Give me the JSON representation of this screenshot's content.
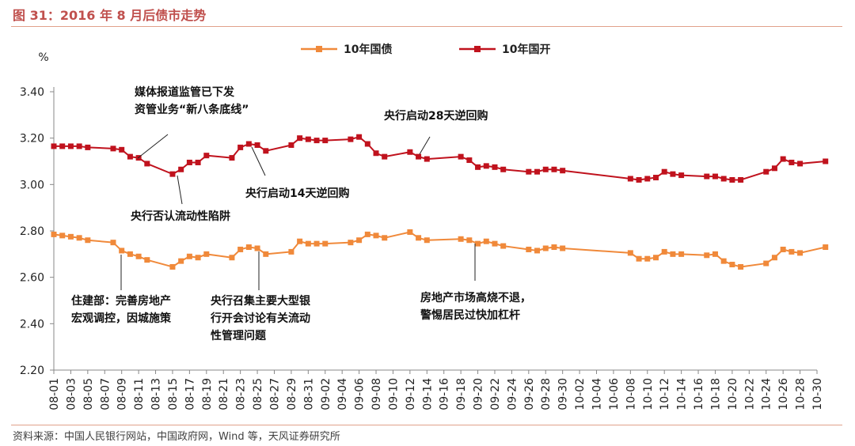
{
  "figure": {
    "title": "图 31：2016 年 8 月后债市走势",
    "source": "资料来源：中国人民银行网站，中国政府网，Wind 等，天风证券研究所"
  },
  "colors": {
    "title": "#c0504d",
    "series_orange": "#f0893a",
    "series_red": "#c0121d",
    "rule": "#e1a18a"
  },
  "chart_data": {
    "type": "line",
    "ylabel": "%",
    "ylim": [
      2.2,
      3.4
    ],
    "yticks": [
      "2.20",
      "2.40",
      "2.60",
      "2.80",
      "3.00",
      "3.20",
      "3.40"
    ],
    "date_range": [
      "08-01",
      "10-30"
    ],
    "xticks": [
      "08-01",
      "08-03",
      "08-05",
      "08-07",
      "08-09",
      "08-11",
      "08-13",
      "08-15",
      "08-17",
      "08-19",
      "08-21",
      "08-23",
      "08-25",
      "08-27",
      "08-29",
      "08-31",
      "09-02",
      "09-04",
      "09-06",
      "09-08",
      "09-10",
      "09-12",
      "09-14",
      "09-16",
      "09-18",
      "09-20",
      "09-22",
      "09-24",
      "09-26",
      "09-28",
      "09-30",
      "10-02",
      "10-04",
      "10-06",
      "10-08",
      "10-10",
      "10-12",
      "10-14",
      "10-16",
      "10-18",
      "10-20",
      "10-22",
      "10-24",
      "10-26",
      "10-28",
      "10-30"
    ],
    "grid": false,
    "legend_position": "top-center",
    "series": [
      {
        "name": "10年国债",
        "color": "#f0893a",
        "marker": "square",
        "x": [
          "08-01",
          "08-02",
          "08-03",
          "08-04",
          "08-05",
          "08-08",
          "08-09",
          "08-10",
          "08-11",
          "08-12",
          "08-15",
          "08-16",
          "08-17",
          "08-18",
          "08-19",
          "08-22",
          "08-23",
          "08-24",
          "08-25",
          "08-26",
          "08-29",
          "08-30",
          "08-31",
          "09-01",
          "09-02",
          "09-05",
          "09-06",
          "09-07",
          "09-08",
          "09-09",
          "09-12",
          "09-13",
          "09-14",
          "09-18",
          "09-19",
          "09-20",
          "09-21",
          "09-22",
          "09-23",
          "09-26",
          "09-27",
          "09-28",
          "09-29",
          "09-30",
          "10-08",
          "10-09",
          "10-10",
          "10-11",
          "10-12",
          "10-13",
          "10-14",
          "10-17",
          "10-18",
          "10-19",
          "10-20",
          "10-21",
          "10-24",
          "10-25",
          "10-26",
          "10-27",
          "10-28",
          "10-31"
        ],
        "values": [
          2.785,
          2.78,
          2.775,
          2.77,
          2.76,
          2.75,
          2.715,
          2.7,
          2.69,
          2.675,
          2.645,
          2.67,
          2.69,
          2.685,
          2.7,
          2.685,
          2.72,
          2.73,
          2.725,
          2.7,
          2.71,
          2.755,
          2.745,
          2.745,
          2.745,
          2.75,
          2.76,
          2.785,
          2.78,
          2.77,
          2.795,
          2.77,
          2.76,
          2.765,
          2.76,
          2.745,
          2.755,
          2.745,
          2.735,
          2.72,
          2.715,
          2.725,
          2.73,
          2.725,
          2.705,
          2.68,
          2.68,
          2.685,
          2.71,
          2.7,
          2.7,
          2.695,
          2.7,
          2.67,
          2.655,
          2.645,
          2.66,
          2.685,
          2.72,
          2.71,
          2.705,
          2.73
        ]
      },
      {
        "name": "10年国开",
        "color": "#c0121d",
        "marker": "square",
        "x": [
          "08-01",
          "08-02",
          "08-03",
          "08-04",
          "08-05",
          "08-08",
          "08-09",
          "08-10",
          "08-11",
          "08-12",
          "08-15",
          "08-16",
          "08-17",
          "08-18",
          "08-19",
          "08-22",
          "08-23",
          "08-24",
          "08-25",
          "08-26",
          "08-29",
          "08-30",
          "08-31",
          "09-01",
          "09-02",
          "09-05",
          "09-06",
          "09-07",
          "09-08",
          "09-09",
          "09-12",
          "09-13",
          "09-14",
          "09-18",
          "09-19",
          "09-20",
          "09-21",
          "09-22",
          "09-23",
          "09-26",
          "09-27",
          "09-28",
          "09-29",
          "09-30",
          "10-08",
          "10-09",
          "10-10",
          "10-11",
          "10-12",
          "10-13",
          "10-14",
          "10-17",
          "10-18",
          "10-19",
          "10-20",
          "10-21",
          "10-24",
          "10-25",
          "10-26",
          "10-27",
          "10-28",
          "10-31"
        ],
        "values": [
          3.165,
          3.165,
          3.165,
          3.165,
          3.16,
          3.155,
          3.15,
          3.12,
          3.115,
          3.09,
          3.045,
          3.065,
          3.095,
          3.095,
          3.125,
          3.115,
          3.16,
          3.175,
          3.17,
          3.145,
          3.17,
          3.2,
          3.195,
          3.19,
          3.19,
          3.195,
          3.205,
          3.175,
          3.135,
          3.12,
          3.14,
          3.12,
          3.11,
          3.12,
          3.105,
          3.075,
          3.08,
          3.075,
          3.065,
          3.055,
          3.055,
          3.065,
          3.065,
          3.06,
          3.025,
          3.02,
          3.025,
          3.03,
          3.055,
          3.045,
          3.04,
          3.035,
          3.035,
          3.025,
          3.02,
          3.02,
          3.055,
          3.07,
          3.11,
          3.095,
          3.09,
          3.1
        ]
      }
    ],
    "annotations": [
      {
        "lines": [
          "媒体报道监管已下发",
          "资管业务“新八条底线”"
        ]
      },
      {
        "lines": [
          "央行启动28天逆回购"
        ]
      },
      {
        "lines": [
          "央行启动14天逆回购"
        ]
      },
      {
        "lines": [
          "央行否认流动性陷阱"
        ]
      },
      {
        "lines": [
          "住建部：完善房地产",
          "宏观调控，因城施策"
        ]
      },
      {
        "lines": [
          "央行召集主要大型银",
          "行开会讨论有关流动",
          "性管理问题"
        ]
      },
      {
        "lines": [
          "房地产市场高烧不退，",
          "警惕居民过快加杠杆"
        ]
      }
    ]
  }
}
